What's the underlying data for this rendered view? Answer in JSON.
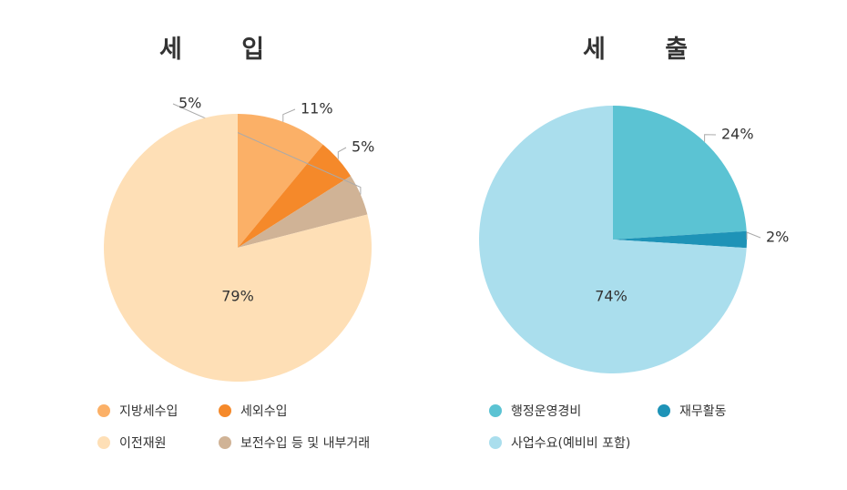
{
  "chart_data": [
    {
      "type": "pie",
      "title": "세 입",
      "categories": [
        "지방세수입",
        "세외수입",
        "보전수입 등 및 내부거래",
        "이전재원"
      ],
      "values": [
        11,
        5,
        5,
        79
      ],
      "labels": [
        "11%",
        "5%",
        "5%",
        "79%"
      ],
      "colors": [
        "#fbb067",
        "#f5892a",
        "#d0b396",
        "#fedfb6"
      ],
      "legend_order": [
        0,
        1,
        3,
        2
      ]
    },
    {
      "type": "pie",
      "title": "세 출",
      "categories": [
        "행정운영경비",
        "재무활동",
        "사업수요(예비비 포함)"
      ],
      "values": [
        24,
        2,
        74
      ],
      "labels": [
        "24%",
        "2%",
        "74%"
      ],
      "colors": [
        "#5bc3d3",
        "#1e93b7",
        "#aadeed"
      ],
      "legend_order": [
        0,
        1,
        2
      ]
    }
  ]
}
